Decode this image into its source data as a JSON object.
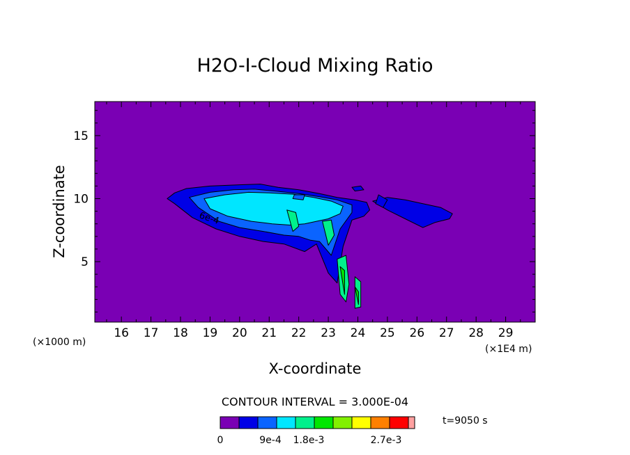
{
  "chart_data": {
    "type": "contour",
    "title": "H2O-I-Cloud Mixing Ratio",
    "xlabel": "X-coordinate",
    "ylabel": "Z-coordinate",
    "x_unit_left": "(×1000 m)",
    "x_unit_right": "(×1E4 m)",
    "xlim": [
      15.1,
      30
    ],
    "ylim": [
      0.2,
      17.7
    ],
    "x_ticks": [
      "16",
      "17",
      "18",
      "19",
      "20",
      "21",
      "22",
      "23",
      "24",
      "25",
      "26",
      "27",
      "28",
      "29"
    ],
    "y_ticks": [
      "5",
      "10",
      "15"
    ],
    "contour_interval_text": "CONTOUR INTERVAL = 3.000E-04",
    "time_text": "t=9050 s",
    "contour_label": "6e-4",
    "colorbar": {
      "colors": [
        "#7a00b4",
        "#0000e6",
        "#0a64ff",
        "#00e6ff",
        "#00f08c",
        "#00e600",
        "#82f000",
        "#ffff00",
        "#ff8000",
        "#ff0000",
        "#ffa0a0"
      ],
      "labels": [
        "0",
        "9e-4",
        "1.8e-3",
        "2.7e-3"
      ]
    },
    "field_levels": [
      {
        "level": "3e-4",
        "color": "#0000e6",
        "x": [
          17.55,
          17.8,
          18.2,
          19,
          20,
          20.7,
          21.3,
          22,
          22.7,
          23.3,
          23.9,
          24.3,
          24.4,
          24.2,
          23.8,
          23.5,
          23.3,
          23,
          22.6,
          22.2,
          21.5,
          20.8,
          20,
          19.2,
          18.4,
          17.8,
          17.55
        ],
        "y": [
          10,
          10.45,
          10.8,
          11,
          11.1,
          11.15,
          10.9,
          10.7,
          10.4,
          10.1,
          9.9,
          9.7,
          9.1,
          8.6,
          8.3,
          6.2,
          3.3,
          4.1,
          6.4,
          5.8,
          6.4,
          6.6,
          7,
          7.6,
          8.5,
          9.6,
          10
        ]
      },
      {
        "level": "6e-4",
        "color": "#0a64ff",
        "x": [
          18.3,
          19,
          19.8,
          20.5,
          21.2,
          22,
          22.7,
          23.3,
          23.8,
          23.8,
          23.4,
          23.1,
          22.7,
          22.4,
          22,
          21.5,
          20.8,
          20,
          19.3,
          18.6,
          18.3
        ],
        "y": [
          10.1,
          10.5,
          10.7,
          10.75,
          10.6,
          10.4,
          10.15,
          9.9,
          9.5,
          8.9,
          7.6,
          5.5,
          6.6,
          6.7,
          7,
          7.1,
          7.4,
          7.7,
          8.2,
          9.3,
          10.1
        ]
      },
      {
        "level": "9e-4",
        "color": "#00e6ff",
        "x": [
          18.8,
          19.5,
          20.3,
          21,
          21.8,
          22.5,
          23.1,
          23.5,
          23.4,
          23,
          22.6,
          22.2,
          21.7,
          21.1,
          20.4,
          19.6,
          19,
          18.8
        ],
        "y": [
          10,
          10.3,
          10.5,
          10.45,
          10.35,
          10.1,
          9.8,
          9.4,
          8.8,
          8.4,
          8.2,
          8,
          7.9,
          8,
          8.2,
          8.6,
          9.2,
          10
        ]
      },
      {
        "level": "1.2e-3",
        "color": "#00f08c",
        "x": [
          21.6,
          21.9,
          22,
          21.8,
          21.6
        ],
        "y": [
          9.1,
          8.9,
          7.8,
          7.4,
          9.1
        ]
      },
      {
        "level": "1.2e-3",
        "color": "#00f08c",
        "x": [
          22.8,
          23.1,
          23.2,
          23,
          22.8
        ],
        "y": [
          8.2,
          8.3,
          7.1,
          6.3,
          8.2
        ]
      },
      {
        "level": "1.2e-3",
        "color": "#00f08c",
        "x": [
          23.3,
          23.6,
          23.7,
          23.6,
          23.4,
          23.3
        ],
        "y": [
          5.2,
          5.5,
          3.2,
          1.8,
          2.4,
          5.2
        ]
      },
      {
        "level": "1.2e-3",
        "color": "#00f08c",
        "x": [
          23.9,
          24.1,
          24.1,
          23.9,
          23.9
        ],
        "y": [
          3.8,
          3.4,
          1.4,
          1.3,
          3.8
        ]
      },
      {
        "level": "1.5e-3",
        "color": "#00e600",
        "x": [
          23.4,
          23.55,
          23.55,
          23.4
        ],
        "y": [
          4.6,
          4.3,
          2.4,
          4.6
        ]
      },
      {
        "level": "1.5e-3",
        "color": "#00e600",
        "x": [
          23.9,
          24.02,
          24.02,
          23.9
        ],
        "y": [
          3,
          2.6,
          1.6,
          3
        ]
      },
      {
        "level": "3e-4",
        "color": "#0000e6",
        "x": [
          24.5,
          25,
          25.6,
          26.2,
          26.8,
          27.2,
          27.1,
          26.6,
          26.2,
          25.6,
          25,
          24.5
        ],
        "y": [
          9.8,
          10.1,
          9.9,
          9.6,
          9.3,
          8.8,
          8.4,
          8.1,
          7.7,
          8.4,
          9.1,
          9.8
        ]
      },
      {
        "level": "3e-4",
        "color": "#0000e6",
        "x": [
          24.7,
          25,
          24.85,
          24.6,
          24.7
        ],
        "y": [
          10.3,
          9.9,
          9.3,
          9.6,
          10.3
        ]
      },
      {
        "level": "3e-4",
        "color": "#0000e6",
        "x": [
          23.8,
          24.1,
          24.2,
          23.9,
          23.8
        ],
        "y": [
          10.9,
          11,
          10.7,
          10.6,
          10.9
        ]
      },
      {
        "level": "6e-4",
        "color": "#0a64ff",
        "x": [
          21.85,
          22.2,
          22.15,
          21.8,
          21.85
        ],
        "y": [
          10.3,
          10.3,
          9.9,
          10,
          10.3
        ]
      }
    ]
  }
}
